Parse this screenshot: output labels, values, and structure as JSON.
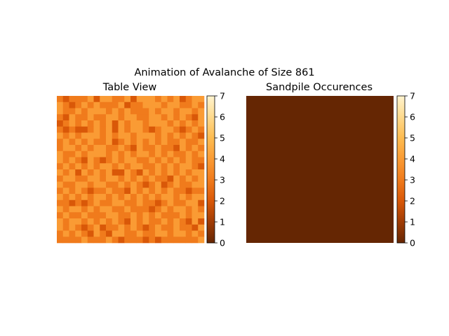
{
  "figure": {
    "title": "Animation of Avalanche of Size 861"
  },
  "chart_data": [
    {
      "type": "heatmap",
      "title": "Table View",
      "rows": 24,
      "cols": 24,
      "colormap": [
        "#652603",
        "#a03c05",
        "#d95808",
        "#f07b1c",
        "#fa9b34",
        "#fdbc51",
        "#feda8d",
        "#fff4cf"
      ],
      "clim": [
        0,
        7
      ],
      "colorbar_ticks": [
        "0",
        "1",
        "2",
        "3",
        "4",
        "5",
        "6",
        "7"
      ],
      "values": [
        [
          3,
          2,
          3,
          3,
          3,
          4,
          2,
          4,
          4,
          3,
          3,
          4,
          2,
          4,
          4,
          4,
          3,
          4,
          3,
          4,
          2,
          3,
          4,
          4
        ],
        [
          4,
          3,
          2,
          3,
          4,
          3,
          4,
          3,
          3,
          3,
          4,
          2,
          3,
          3,
          4,
          4,
          4,
          3,
          4,
          4,
          3,
          3,
          4,
          3
        ],
        [
          4,
          3,
          3,
          4,
          3,
          4,
          4,
          4,
          3,
          4,
          3,
          4,
          3,
          3,
          3,
          4,
          3,
          4,
          4,
          3,
          4,
          4,
          3,
          4
        ],
        [
          3,
          2,
          4,
          3,
          3,
          4,
          3,
          3,
          4,
          4,
          3,
          4,
          4,
          3,
          3,
          4,
          4,
          3,
          4,
          3,
          4,
          3,
          2,
          4
        ],
        [
          2,
          3,
          4,
          3,
          4,
          3,
          4,
          3,
          4,
          2,
          4,
          3,
          4,
          4,
          3,
          4,
          4,
          4,
          3,
          4,
          3,
          4,
          3,
          4
        ],
        [
          3,
          2,
          3,
          2,
          2,
          3,
          4,
          3,
          4,
          2,
          4,
          3,
          4,
          4,
          3,
          2,
          3,
          4,
          4,
          3,
          2,
          3,
          4,
          3
        ],
        [
          4,
          3,
          4,
          3,
          4,
          4,
          4,
          3,
          4,
          3,
          4,
          4,
          3,
          4,
          4,
          4,
          3,
          4,
          3,
          4,
          3,
          4,
          3,
          2
        ],
        [
          3,
          4,
          3,
          4,
          3,
          4,
          3,
          3,
          4,
          2,
          3,
          4,
          3,
          4,
          3,
          4,
          3,
          4,
          3,
          3,
          4,
          3,
          3,
          4
        ],
        [
          3,
          4,
          4,
          3,
          4,
          3,
          4,
          4,
          3,
          3,
          4,
          3,
          2,
          4,
          3,
          3,
          4,
          3,
          3,
          2,
          4,
          3,
          4,
          3
        ],
        [
          4,
          3,
          3,
          4,
          3,
          4,
          4,
          4,
          3,
          4,
          3,
          4,
          3,
          4,
          4,
          3,
          4,
          3,
          4,
          3,
          3,
          4,
          3,
          4
        ],
        [
          4,
          3,
          4,
          3,
          2,
          4,
          3,
          2,
          3,
          4,
          3,
          4,
          4,
          3,
          3,
          4,
          3,
          4,
          3,
          4,
          3,
          4,
          3,
          3
        ],
        [
          3,
          4,
          3,
          4,
          3,
          4,
          3,
          4,
          4,
          3,
          4,
          3,
          4,
          4,
          3,
          3,
          4,
          3,
          4,
          3,
          4,
          4,
          3,
          2
        ],
        [
          4,
          3,
          4,
          2,
          4,
          3,
          4,
          3,
          4,
          2,
          2,
          4,
          3,
          2,
          4,
          3,
          4,
          3,
          4,
          3,
          4,
          3,
          4,
          4
        ],
        [
          3,
          4,
          4,
          3,
          3,
          4,
          4,
          3,
          4,
          4,
          3,
          4,
          3,
          4,
          3,
          4,
          3,
          3,
          2,
          4,
          3,
          4,
          3,
          4
        ],
        [
          4,
          3,
          3,
          4,
          4,
          3,
          4,
          4,
          3,
          3,
          4,
          3,
          4,
          3,
          2,
          3,
          4,
          2,
          3,
          4,
          3,
          3,
          4,
          4
        ],
        [
          3,
          4,
          3,
          4,
          3,
          2,
          3,
          3,
          4,
          3,
          3,
          2,
          4,
          3,
          4,
          3,
          4,
          3,
          4,
          3,
          3,
          2,
          3,
          3
        ],
        [
          4,
          3,
          4,
          3,
          4,
          3,
          4,
          4,
          3,
          4,
          3,
          4,
          3,
          4,
          3,
          4,
          3,
          4,
          4,
          3,
          4,
          3,
          4,
          4
        ],
        [
          3,
          3,
          2,
          3,
          2,
          3,
          4,
          3,
          3,
          4,
          4,
          3,
          3,
          4,
          3,
          3,
          2,
          3,
          4,
          3,
          3,
          4,
          4,
          2
        ],
        [
          4,
          3,
          4,
          4,
          3,
          4,
          3,
          4,
          4,
          3,
          3,
          4,
          3,
          3,
          3,
          2,
          3,
          4,
          3,
          4,
          4,
          3,
          4,
          3
        ],
        [
          3,
          4,
          3,
          3,
          4,
          3,
          3,
          3,
          4,
          4,
          3,
          3,
          4,
          3,
          4,
          3,
          4,
          3,
          3,
          3,
          4,
          3,
          4,
          4
        ],
        [
          4,
          3,
          4,
          4,
          3,
          4,
          3,
          4,
          3,
          4,
          3,
          2,
          4,
          3,
          4,
          3,
          3,
          4,
          3,
          4,
          3,
          2,
          4,
          2
        ],
        [
          4,
          3,
          4,
          3,
          2,
          3,
          4,
          2,
          3,
          3,
          4,
          3,
          4,
          3,
          2,
          3,
          4,
          3,
          3,
          4,
          3,
          3,
          2,
          4
        ],
        [
          3,
          4,
          3,
          4,
          3,
          2,
          4,
          3,
          2,
          4,
          4,
          3,
          3,
          4,
          3,
          3,
          4,
          4,
          3,
          4,
          4,
          3,
          4,
          3
        ],
        [
          3,
          3,
          3,
          3,
          4,
          3,
          3,
          3,
          4,
          3,
          2,
          3,
          3,
          3,
          2,
          3,
          2,
          3,
          3,
          3,
          3,
          3,
          3,
          4
        ]
      ]
    },
    {
      "type": "heatmap",
      "title": "Sandpile Occurences",
      "fill_value": 0,
      "colormap": [
        "#652603",
        "#a03c05",
        "#d95808",
        "#f07b1c",
        "#fa9b34",
        "#fdbc51",
        "#feda8d",
        "#fff4cf"
      ],
      "clim": [
        0,
        7
      ],
      "colorbar_ticks": [
        "0",
        "1",
        "2",
        "3",
        "4",
        "5",
        "6",
        "7"
      ]
    }
  ]
}
